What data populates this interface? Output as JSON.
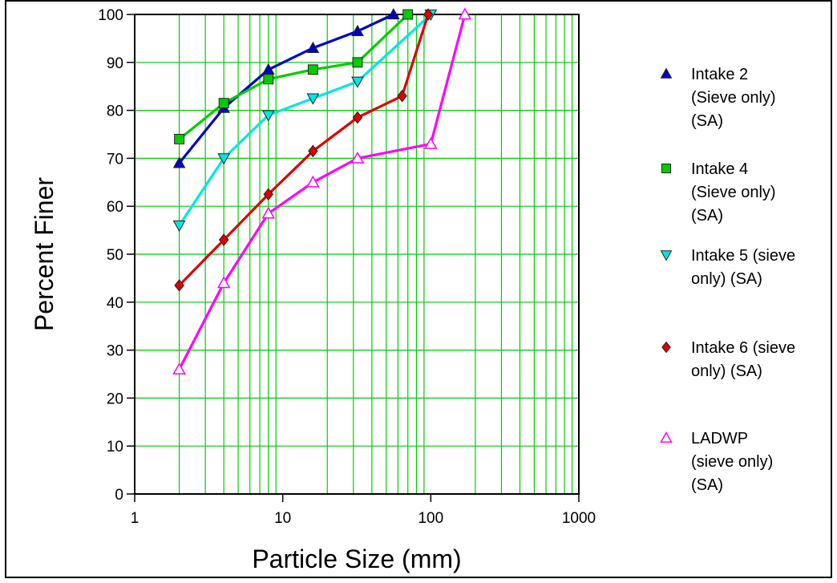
{
  "chart_data": {
    "type": "line",
    "xscale": "log",
    "xlim": [
      1,
      1000
    ],
    "ylim": [
      0,
      100
    ],
    "xlabel": "Particle Size (mm)",
    "ylabel": "Percent Finer",
    "x_ticks": [
      "1",
      "10",
      "100",
      "1000"
    ],
    "y_ticks": [
      "0",
      "10",
      "20",
      "30",
      "40",
      "50",
      "60",
      "70",
      "80",
      "90",
      "100"
    ],
    "grid": true,
    "grid_color": "#00cc00",
    "legend_position": "right",
    "series": [
      {
        "name_lines": [
          "Intake 2",
          "(Sieve only)",
          "(SA)"
        ],
        "color": "#0000cc",
        "marker": "triangle-up",
        "marker_fill": "#0000cc",
        "x": [
          2,
          4,
          8,
          16,
          32,
          56
        ],
        "y": [
          69,
          80.5,
          88.5,
          93,
          96.5,
          100
        ]
      },
      {
        "name_lines": [
          "Intake 4",
          "(Sieve only)",
          "(SA)"
        ],
        "color": "#00cc00",
        "marker": "square",
        "marker_fill": "#00cc00",
        "x": [
          2,
          4,
          8,
          16,
          32,
          70
        ],
        "y": [
          74,
          81.5,
          86.5,
          88.5,
          90,
          100
        ]
      },
      {
        "name_lines": [
          "Intake 5 (sieve",
          "only) (SA)"
        ],
        "color": "#00e5e5",
        "marker": "triangle-down",
        "marker_fill": "#00e5e5",
        "x": [
          2,
          4,
          8,
          16,
          32,
          100
        ],
        "y": [
          56,
          70,
          79,
          82.5,
          86,
          100
        ]
      },
      {
        "name_lines": [
          "Intake 6 (sieve",
          "only) (SA)"
        ],
        "color": "#dd0000",
        "marker": "diamond",
        "marker_fill": "#dd0000",
        "x": [
          2,
          4,
          8,
          16,
          32,
          64,
          96
        ],
        "y": [
          43.5,
          53,
          62.5,
          71.5,
          78.5,
          83,
          100
        ]
      },
      {
        "name_lines": [
          "LADWP",
          "(sieve only)",
          "(SA)"
        ],
        "color": "#ff00ff",
        "marker": "triangle-up-open",
        "marker_fill": "#ffffff",
        "x": [
          2,
          4,
          8,
          16,
          32,
          100,
          170
        ],
        "y": [
          26,
          44,
          58.5,
          65,
          70,
          73,
          100
        ]
      }
    ]
  }
}
